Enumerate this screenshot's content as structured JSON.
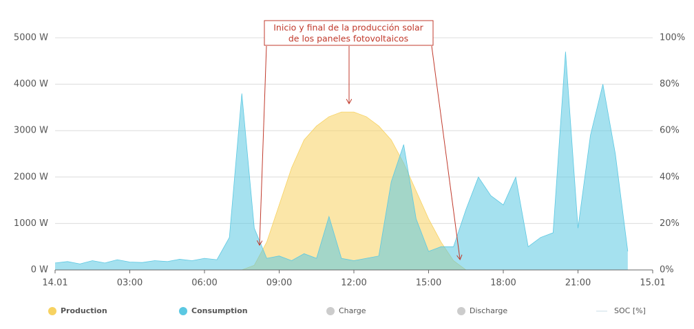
{
  "chart_data": {
    "type": "area",
    "annotation": [
      "Inicio y final de la producción solar",
      "de los paneles fotovoltaicos"
    ],
    "x": [
      0,
      0.5,
      1,
      1.5,
      2,
      2.5,
      3,
      3.5,
      4,
      4.5,
      5,
      5.5,
      6,
      6.5,
      7,
      7.5,
      8,
      8.5,
      9,
      9.5,
      10,
      10.5,
      11,
      11.5,
      12,
      12.5,
      13,
      13.5,
      14,
      14.5,
      15,
      15.5,
      16,
      16.5,
      17,
      17.5,
      18,
      18.5,
      19,
      19.5,
      20,
      20.5,
      21,
      21.5,
      22,
      22.5,
      23,
      23.5,
      24
    ],
    "series": [
      {
        "name": "Production",
        "color": "#f7d261",
        "values": [
          0,
          0,
          0,
          0,
          0,
          0,
          0,
          0,
          0,
          0,
          0,
          0,
          0,
          0,
          0,
          0,
          100,
          600,
          1400,
          2200,
          2800,
          3100,
          3300,
          3400,
          3400,
          3300,
          3100,
          2800,
          2300,
          1700,
          1100,
          600,
          200,
          0,
          0,
          0,
          0,
          0,
          0,
          0,
          0,
          0,
          0,
          0,
          0,
          0,
          0,
          0,
          0
        ]
      },
      {
        "name": "Consumption",
        "color": "#5bc8e2",
        "values": [
          150,
          180,
          130,
          200,
          150,
          220,
          170,
          160,
          200,
          180,
          230,
          200,
          250,
          220,
          700,
          3800,
          900,
          250,
          300,
          200,
          350,
          250,
          1150,
          250,
          200,
          250,
          300,
          1900,
          2700,
          1100,
          400,
          500,
          500,
          1300,
          2000,
          1600,
          1400,
          2000,
          500,
          700,
          800,
          4700,
          900,
          2900,
          4000,
          2500,
          400,
          null,
          null
        ]
      },
      {
        "name": "Charge",
        "color": "#cccccc"
      },
      {
        "name": "Discharge",
        "color": "#cccccc"
      },
      {
        "name": "SOC [%]",
        "color": "#e4eef2",
        "axis": "y2"
      }
    ],
    "xlim": [
      0,
      24
    ],
    "xticks": [
      {
        "value": 0,
        "label": "14.01"
      },
      {
        "value": 3,
        "label": "03:00"
      },
      {
        "value": 6,
        "label": "06:00"
      },
      {
        "value": 9,
        "label": "09:00"
      },
      {
        "value": 12,
        "label": "12:00"
      },
      {
        "value": 15,
        "label": "15:00"
      },
      {
        "value": 18,
        "label": "18:00"
      },
      {
        "value": 21,
        "label": "21:00"
      },
      {
        "value": 24,
        "label": "15.01"
      }
    ],
    "ylim": [
      0,
      5000
    ],
    "yticks": [
      {
        "value": 0,
        "label": "0 W"
      },
      {
        "value": 1000,
        "label": "1000 W"
      },
      {
        "value": 2000,
        "label": "2000 W"
      },
      {
        "value": 3000,
        "label": "3000 W"
      },
      {
        "value": 4000,
        "label": "4000 W"
      },
      {
        "value": 5000,
        "label": "5000 W"
      }
    ],
    "y2lim": [
      0,
      100
    ],
    "y2ticks": [
      {
        "value": 0,
        "label": "0%"
      },
      {
        "value": 20,
        "label": "20%"
      },
      {
        "value": 40,
        "label": "40%"
      },
      {
        "value": 60,
        "label": "60%"
      },
      {
        "value": 80,
        "label": "80%"
      },
      {
        "value": 100,
        "label": "100%"
      }
    ],
    "grid": true
  }
}
